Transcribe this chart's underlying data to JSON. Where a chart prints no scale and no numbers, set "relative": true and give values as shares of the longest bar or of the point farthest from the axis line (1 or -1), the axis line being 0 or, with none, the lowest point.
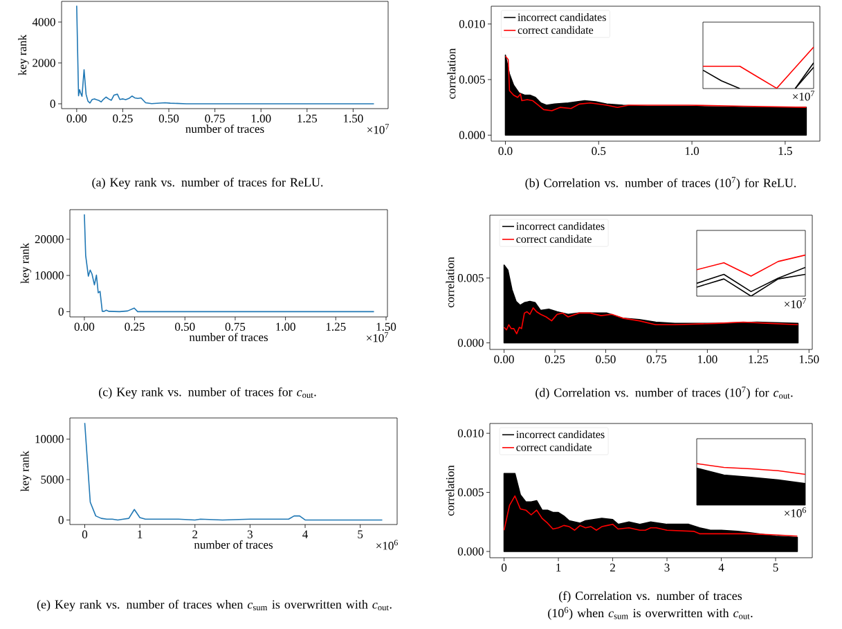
{
  "chart_data": [
    {
      "type": "line",
      "xlabel": "number of traces",
      "ylabel": "key rank",
      "color": "#1f77b4",
      "x": [
        0,
        0.0101,
        0.0159,
        0.0217,
        0.0289,
        0.04,
        0.051,
        0.061,
        0.072,
        0.084,
        0.097,
        0.107,
        0.121,
        0.133,
        0.144,
        0.159,
        0.173,
        0.188,
        0.202,
        0.221,
        0.234,
        0.251,
        0.266,
        0.283,
        0.3,
        0.315,
        0.332,
        0.349,
        0.374,
        0.407,
        0.479,
        0.508,
        0.595,
        1.613
      ],
      "values": [
        4800,
        390,
        690,
        520,
        370,
        1670,
        460,
        130,
        40,
        210,
        240,
        200,
        160,
        90,
        210,
        330,
        240,
        170,
        420,
        470,
        210,
        240,
        200,
        260,
        380,
        290,
        260,
        290,
        50,
        10,
        50,
        30,
        0,
        0
      ],
      "xlim": [
        -0.082,
        1.69
      ],
      "ylim": [
        -237,
        5013
      ],
      "xticks": [
        {
          "value": 0,
          "label": "0.00"
        },
        {
          "value": 0.25,
          "label": "0.25"
        },
        {
          "value": 0.5,
          "label": "0.50"
        },
        {
          "value": 0.75,
          "label": "0.75"
        },
        {
          "value": 1.0,
          "label": "1.00"
        },
        {
          "value": 1.25,
          "label": "1.25"
        },
        {
          "value": 1.5,
          "label": "1.50"
        }
      ],
      "yticks": [
        0,
        2000,
        4000
      ],
      "annotations": [
        "×10$^{7}$",
        "(a) Key rank vs. number of traces for ReLU."
      ]
    },
    {
      "type": "line",
      "ylabel": "correlation",
      "legend": "top left",
      "series": [
        {
          "name": "incorrect candidates",
          "type": "area",
          "color": "#000000",
          "x": [
            0,
            0.022,
            0.044,
            0.073,
            0.103,
            0.132,
            0.161,
            0.19,
            0.22,
            0.264,
            0.337,
            0.425,
            0.484,
            0.543,
            0.63,
            0.762,
            0.982,
            1.276,
            1.613
          ],
          "values": [
            0.0072,
            0.0055,
            0.0045,
            0.0038,
            0.0036,
            0.0036,
            0.0034,
            0.0029,
            0.0027,
            0.0028,
            0.0029,
            0.0031,
            0.003,
            0.0028,
            0.0027,
            0.0026,
            0.0026,
            0.0025,
            0.0025
          ]
        },
        {
          "name": "correct candidate",
          "color": "#ff0000",
          "x": [
            0,
            0.015,
            0.022,
            0.044,
            0.066,
            0.081,
            0.088,
            0.117,
            0.147,
            0.176,
            0.205,
            0.249,
            0.293,
            0.352,
            0.396,
            0.455,
            0.543,
            0.601,
            0.66,
            0.762,
            0.982,
            1.276,
            1.613
          ],
          "values": [
            0.0071,
            0.0068,
            0.004,
            0.0036,
            0.0034,
            0.0037,
            0.0031,
            0.0032,
            0.0031,
            0.0027,
            0.0023,
            0.0022,
            0.0025,
            0.0024,
            0.0028,
            0.0029,
            0.0027,
            0.0025,
            0.0027,
            0.0027,
            0.0027,
            0.0026,
            0.0025
          ]
        }
      ],
      "xlim": [
        -0.076,
        1.686
      ],
      "ylim": [
        -0.00054,
        0.0116
      ],
      "xticks": [
        {
          "value": 0,
          "label": "0.0"
        },
        {
          "value": 0.5,
          "label": "0.5"
        },
        {
          "value": 1.0,
          "label": "1.0"
        },
        {
          "value": 1.5,
          "label": "1.5"
        }
      ],
      "yticks": [
        {
          "value": 0,
          "label": "0.000"
        },
        {
          "value": 0.005,
          "label": "0.005"
        },
        {
          "value": 0.01,
          "label": "0.010"
        }
      ],
      "annotations": [
        "(b) Correlation vs. number of traces (10$^{7}$) for ReLU."
      ]
    },
    {
      "type": "line",
      "xlabel": "number of traces",
      "ylabel": "key rank",
      "color": "#1f77b4",
      "x": [
        0,
        0.0066,
        0.0199,
        0.029,
        0.038,
        0.05,
        0.06,
        0.069,
        0.078,
        0.089,
        0.099,
        0.109,
        0.122,
        0.175,
        0.215,
        0.248,
        0.265,
        1.44
      ],
      "values": [
        26900,
        15500,
        9800,
        11500,
        10400,
        7400,
        10100,
        5200,
        5600,
        100,
        100,
        400,
        100,
        0,
        200,
        1000,
        0,
        0
      ],
      "xlim": [
        -0.072,
        1.507
      ],
      "ylim": [
        -1450,
        28180
      ],
      "xticks": [
        {
          "value": 0,
          "label": "0.00"
        },
        {
          "value": 0.25,
          "label": "0.25"
        },
        {
          "value": 0.5,
          "label": "0.50"
        },
        {
          "value": 0.75,
          "label": "0.75"
        },
        {
          "value": 1.0,
          "label": "1.00"
        },
        {
          "value": 1.25,
          "label": "1.25"
        },
        {
          "value": 1.5,
          "label": "1.50"
        }
      ],
      "yticks": [
        0,
        10000,
        20000
      ],
      "annotations": [
        "×10$^{7}$",
        "(c) Key rank vs. number of traces for *c*$_{out}$."
      ]
    },
    {
      "type": "line",
      "ylabel": "correlation",
      "legend": "top left",
      "series": [
        {
          "name": "incorrect candidates",
          "type": "area",
          "color": "#000000",
          "x": [
            0,
            0.019,
            0.039,
            0.059,
            0.079,
            0.1,
            0.127,
            0.153,
            0.18,
            0.22,
            0.261,
            0.315,
            0.369,
            0.45,
            0.504,
            0.584,
            0.665,
            0.746,
            0.84,
            1.042,
            1.244,
            1.446
          ],
          "values": [
            0.006,
            0.0056,
            0.0041,
            0.0032,
            0.0029,
            0.0031,
            0.0032,
            0.0031,
            0.0025,
            0.0026,
            0.0024,
            0.0022,
            0.0023,
            0.0023,
            0.0023,
            0.0019,
            0.0018,
            0.0016,
            0.0015,
            0.0015,
            0.0016,
            0.0015
          ]
        },
        {
          "name": "correct candidate",
          "color": "#ff0000",
          "x": [
            0,
            0.012,
            0.023,
            0.035,
            0.048,
            0.062,
            0.075,
            0.086,
            0.1,
            0.113,
            0.127,
            0.143,
            0.16,
            0.18,
            0.207,
            0.234,
            0.261,
            0.288,
            0.315,
            0.369,
            0.423,
            0.477,
            0.53,
            0.584,
            0.665,
            0.746,
            0.84,
            1.042,
            1.177,
            1.311,
            1.446
          ],
          "values": [
            0.0012,
            0.001,
            0.0014,
            0.0011,
            0.0011,
            0.0007,
            0.0012,
            0.0011,
            0.0023,
            0.0024,
            0.0022,
            0.0027,
            0.0024,
            0.0022,
            0.002,
            0.0017,
            0.0022,
            0.0023,
            0.002,
            0.0023,
            0.0023,
            0.0021,
            0.0022,
            0.0019,
            0.0017,
            0.0014,
            0.0014,
            0.0015,
            0.0016,
            0.0015,
            0.0014
          ]
        }
      ],
      "xlim": [
        -0.07,
        1.516
      ],
      "ylim": [
        -0.00051,
        0.00985
      ],
      "xticks": [
        {
          "value": 0,
          "label": "0.00"
        },
        {
          "value": 0.25,
          "label": "0.25"
        },
        {
          "value": 0.5,
          "label": "0.50"
        },
        {
          "value": 0.75,
          "label": "0.75"
        },
        {
          "value": 1.0,
          "label": "1.00"
        },
        {
          "value": 1.25,
          "label": "1.25"
        },
        {
          "value": 1.5,
          "label": "1.50"
        }
      ],
      "yticks": [
        {
          "value": 0,
          "label": "0.000"
        },
        {
          "value": 0.005,
          "label": "0.005"
        }
      ],
      "annotations": [
        "(d) Correlation vs. number of traces (10$^{7}$) for *c*$_{out}$."
      ]
    },
    {
      "type": "line",
      "xlabel": "number of traces",
      "ylabel": "key rank",
      "color": "#1f77b4",
      "x": [
        0,
        0.1,
        0.2,
        0.3,
        0.4,
        0.5,
        0.6,
        0.7,
        0.8,
        0.9,
        1.0,
        1.1,
        1.2,
        1.3,
        1.4,
        1.5,
        1.7,
        2.0,
        2.1,
        2.5,
        3.0,
        3.5,
        3.7,
        3.8,
        3.9,
        4.0,
        4.5,
        5.4
      ],
      "values": [
        12000,
        2200,
        500,
        200,
        100,
        100,
        0,
        100,
        200,
        1300,
        300,
        100,
        100,
        100,
        100,
        100,
        100,
        0,
        100,
        0,
        100,
        100,
        100,
        500,
        500,
        0,
        0,
        0
      ],
      "xlim": [
        -0.27,
        5.67
      ],
      "ylim": [
        -560,
        12620
      ],
      "xticks": [
        0,
        1,
        2,
        3,
        4,
        5
      ],
      "yticks": [
        0,
        5000,
        10000
      ],
      "annotations": [
        "×10$^{6}$",
        "(e) Key rank vs. number of traces when *c*$_{sum}$ is overwritten with *c*$_{out}$."
      ]
    },
    {
      "type": "line",
      "ylabel": "correlation",
      "legend": "top left",
      "series": [
        {
          "name": "incorrect candidates",
          "type": "area",
          "color": "#000000",
          "x": [
            0,
            0.1,
            0.2,
            0.3,
            0.4,
            0.5,
            0.6,
            0.7,
            0.8,
            0.9,
            1.0,
            1.1,
            1.2,
            1.4,
            1.5,
            1.8,
            2.0,
            2.1,
            2.3,
            2.5,
            2.7,
            3.0,
            3.4,
            3.6,
            3.8,
            4.0,
            4.3,
            4.5,
            5.0,
            5.4
          ],
          "values": [
            0.0066,
            0.0066,
            0.0066,
            0.0048,
            0.0042,
            0.0042,
            0.0043,
            0.0035,
            0.0035,
            0.0033,
            0.0033,
            0.003,
            0.0026,
            0.0024,
            0.0026,
            0.0028,
            0.0027,
            0.0023,
            0.0025,
            0.0023,
            0.0025,
            0.0023,
            0.0023,
            0.002,
            0.0018,
            0.0018,
            0.0017,
            0.0016,
            0.0013,
            0.0012
          ]
        },
        {
          "name": "correct candidate",
          "color": "#ff0000",
          "x": [
            0,
            0.1,
            0.2,
            0.3,
            0.4,
            0.5,
            0.6,
            0.7,
            0.8,
            0.9,
            1.0,
            1.1,
            1.2,
            1.3,
            1.4,
            1.5,
            1.6,
            1.7,
            1.8,
            1.9,
            2.0,
            2.1,
            2.3,
            2.5,
            2.6,
            2.7,
            2.8,
            3.0,
            3.5,
            3.6,
            4.0,
            4.5,
            5.0,
            5.4
          ],
          "values": [
            0.0018,
            0.0039,
            0.0047,
            0.0036,
            0.0035,
            0.0031,
            0.0035,
            0.0028,
            0.0024,
            0.0019,
            0.002,
            0.0022,
            0.0021,
            0.0018,
            0.0022,
            0.002,
            0.0021,
            0.0018,
            0.0021,
            0.0022,
            0.0023,
            0.0019,
            0.002,
            0.0018,
            0.0018,
            0.002,
            0.002,
            0.0018,
            0.0017,
            0.0015,
            0.0015,
            0.0015,
            0.0014,
            0.0013
          ]
        }
      ],
      "xlim": [
        -0.262,
        5.675
      ],
      "ylim": [
        -0.00053,
        0.01083
      ],
      "xticks": [
        0,
        1,
        2,
        3,
        4,
        5
      ],
      "yticks": [
        {
          "value": 0,
          "label": "0.000"
        },
        {
          "value": 0.005,
          "label": "0.005"
        },
        {
          "value": 0.01,
          "label": "0.010"
        }
      ],
      "annotations": [
        "(f) Correlation vs. number of traces (10$^{6}$) when *c*$_{sum}$ is overwritten with *c*$_{out}$."
      ]
    },
    {
      "type": "line",
      "relative": true,
      "categories": [
        null,
        null,
        null,
        null,
        null,
        null,
        null
      ],
      "series": [
        {
          "color": "#000000",
          "values": [
            0.443,
            0.188,
            0,
            null,
            null,
            null,
            null
          ]
        },
        {
          "color": "#000000",
          "values": [
            null,
            null,
            null,
            null,
            null,
            0,
            0.62
          ]
        },
        {
          "color": "#000000",
          "values": [
            null,
            null,
            null,
            null,
            null,
            0,
            0.514
          ]
        },
        {
          "color": "#ff0000",
          "values": [
            0.537,
            0.537,
            0.537,
            0.271,
            0.007,
            0.504,
            1
          ]
        }
      ],
      "annotations": [
        "×10$^{7}$"
      ]
    },
    {
      "type": "line",
      "relative": true,
      "categories": [
        null,
        null,
        null,
        null,
        null
      ],
      "series": [
        {
          "color": "#000000",
          "values": [
            0.313,
            0.531,
            0.112,
            0.437,
            0.7
          ]
        },
        {
          "color": "#000000",
          "values": [
            0.219,
            0.419,
            0,
            0.419,
            0.531
          ]
        },
        {
          "color": "#ff0000",
          "values": [
            0.644,
            0.812,
            0.487,
            0.844,
            1
          ]
        }
      ],
      "annotations": [
        "×10$^{7}$"
      ]
    },
    {
      "type": "line",
      "relative": true,
      "categories": [
        null,
        null,
        null,
        null,
        null
      ],
      "series": [
        {
          "type": "area",
          "color": "#000000",
          "values": [
            0.892,
            0.724,
            0.67,
            0.607,
            0.518
          ]
        },
        {
          "color": "#ff0000",
          "values": [
            1,
            0.909,
            0.875,
            0.829,
            0.741
          ]
        }
      ],
      "annotations": [
        "×10$^{6}$"
      ]
    }
  ]
}
